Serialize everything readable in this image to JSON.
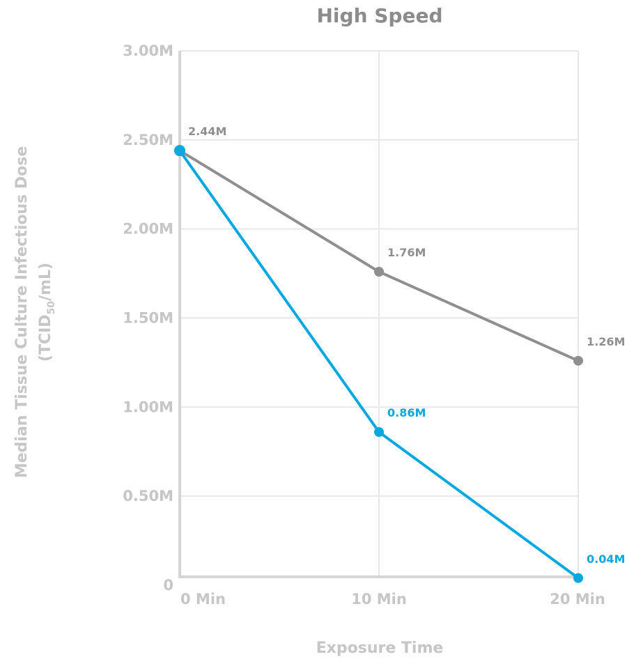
{
  "chart_data": {
    "type": "line",
    "title": "High Speed",
    "xlabel": "Exposure Time",
    "ylabel": "Median Tissue Culture Infectious Dose",
    "ylabel_unit": {
      "prefix": "(TCID",
      "subscript": "50",
      "suffix": "/mL)"
    },
    "categories": [
      "0 Min",
      "10 Min",
      "20 Min"
    ],
    "yticks": [
      {
        "value": 0,
        "label": "0"
      },
      {
        "value": 0.5,
        "label": "0.50M"
      },
      {
        "value": 1.0,
        "label": "1.00M"
      },
      {
        "value": 1.5,
        "label": "1.50M"
      },
      {
        "value": 2.0,
        "label": "2.00M"
      },
      {
        "value": 2.5,
        "label": "2.50M"
      },
      {
        "value": 3.0,
        "label": "3.00M"
      }
    ],
    "ylim": [
      0,
      3.0
    ],
    "grid": true,
    "series": [
      {
        "color": "#8f8f91",
        "values": [
          2.44,
          1.76,
          1.26
        ],
        "labels": [
          "2.44M",
          "1.76M",
          "1.26M"
        ],
        "show_labels": [
          true,
          true,
          true
        ]
      },
      {
        "color": "#0aa8de",
        "values": [
          2.44,
          0.86,
          0.04
        ],
        "labels": [
          "2.44M",
          "0.86M",
          "0.04M"
        ],
        "show_labels": [
          false,
          true,
          true
        ]
      }
    ]
  }
}
